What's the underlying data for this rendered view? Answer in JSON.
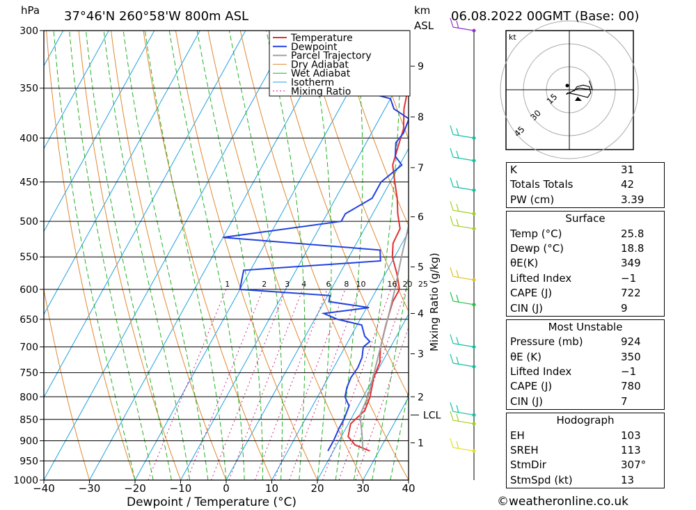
{
  "header": {
    "location": "37°46'N  260°58'W  800m  ASL",
    "datetime": "06.08.2022  00GMT  (Base: 00)",
    "unit_left": "hPa",
    "unit_km": "km",
    "unit_asl": "ASL",
    "kt": "kt"
  },
  "chart_data": {
    "type": "line",
    "title": "37°46'N  260°58'W  800m  ASL",
    "xlabel": "Dewpoint / Temperature (°C)",
    "ylabel": "hPa",
    "xlim": [
      -40,
      40
    ],
    "ylim": [
      1000,
      300
    ],
    "y_scale": "log",
    "x_ticks": [
      "−40",
      "−30",
      "−20",
      "−10",
      "0",
      "10",
      "20",
      "30",
      "40"
    ],
    "pressure_ticks": [
      300,
      350,
      400,
      450,
      500,
      550,
      600,
      650,
      700,
      750,
      800,
      850,
      900,
      950,
      1000
    ],
    "km_ticks": [
      {
        "label": "9",
        "p": 330
      },
      {
        "label": "8",
        "p": 378
      },
      {
        "label": "7",
        "p": 433
      },
      {
        "label": "6",
        "p": 494
      },
      {
        "label": "5",
        "p": 565
      },
      {
        "label": "4",
        "p": 640
      },
      {
        "label": "3",
        "p": 713
      },
      {
        "label": "2",
        "p": 800
      },
      {
        "label": "1",
        "p": 905
      }
    ],
    "lcl": {
      "label": "LCL",
      "p": 840
    },
    "mixing_ratio_axis_label": "Mixing Ratio (g/kg)",
    "mixing_ratio_labels": [
      "1",
      "2",
      "3",
      "4",
      "6",
      "8",
      "10",
      "16",
      "20",
      "25"
    ],
    "legend": [
      "Temperature",
      "Dewpoint",
      "Parcel Trajectory",
      "Dry Adiabat",
      "Wet Adiabat",
      "Isotherm",
      "Mixing Ratio"
    ],
    "legend_position": "top-right",
    "colors": {
      "temperature": "#e03030",
      "dewpoint": "#2040e0",
      "parcel": "#a0a0a0",
      "dry_adiabat": "#e08830",
      "wet_adiabat": "#20b020",
      "isotherm": "#20a0e0",
      "mixing": "#d02080"
    },
    "series": [
      {
        "name": "Temperature",
        "points": [
          [
            925,
            28
          ],
          [
            910,
            24
          ],
          [
            890,
            21.5
          ],
          [
            860,
            20.5
          ],
          [
            830,
            22
          ],
          [
            800,
            21.5
          ],
          [
            760,
            20
          ],
          [
            730,
            19.5
          ],
          [
            700,
            17.8
          ],
          [
            660,
            16.3
          ],
          [
            620,
            15
          ],
          [
            600,
            15
          ],
          [
            575,
            12.5
          ],
          [
            550,
            9.5
          ],
          [
            530,
            8
          ],
          [
            510,
            7.8
          ],
          [
            490,
            5.5
          ],
          [
            470,
            3.5
          ],
          [
            450,
            1
          ],
          [
            430,
            -1.5
          ],
          [
            410,
            -2.5
          ],
          [
            390,
            -3.5
          ],
          [
            370,
            -5.8
          ],
          [
            355,
            -7
          ],
          [
            310,
            -10
          ],
          [
            300,
            -10.5
          ]
        ]
      },
      {
        "name": "Dewpoint",
        "points": [
          [
            925,
            18.8
          ],
          [
            900,
            18.8
          ],
          [
            870,
            18.5
          ],
          [
            850,
            18.5
          ],
          [
            820,
            18
          ],
          [
            800,
            16
          ],
          [
            780,
            15.3
          ],
          [
            760,
            15
          ],
          [
            740,
            15.3
          ],
          [
            720,
            15
          ],
          [
            700,
            14
          ],
          [
            690,
            14.8
          ],
          [
            680,
            13
          ],
          [
            660,
            11
          ],
          [
            650,
            5
          ],
          [
            640,
            1.3
          ],
          [
            630,
            10.5
          ],
          [
            620,
            1
          ],
          [
            610,
            0.5
          ],
          [
            600,
            -20
          ],
          [
            570,
            -21.5
          ],
          [
            556,
            7.4
          ],
          [
            540,
            6
          ],
          [
            522,
            -30
          ],
          [
            500,
            -6
          ],
          [
            490,
            -6
          ],
          [
            470,
            -2
          ],
          [
            450,
            -2
          ],
          [
            430,
            0.5
          ],
          [
            420,
            -2
          ],
          [
            405,
            -3.5
          ],
          [
            395,
            -3
          ],
          [
            380,
            -3.5
          ],
          [
            370,
            -8
          ],
          [
            360,
            -10
          ],
          [
            355,
            -15
          ],
          [
            340,
            -12
          ],
          [
            310,
            -18
          ],
          [
            300,
            -22
          ]
        ]
      },
      {
        "name": "Parcel Trajectory",
        "points": [
          [
            925,
            26.5
          ],
          [
            880,
            24
          ],
          [
            840,
            21.5
          ],
          [
            800,
            21
          ],
          [
            750,
            19.5
          ],
          [
            700,
            17.8
          ],
          [
            650,
            16
          ],
          [
            600,
            14
          ],
          [
            550,
            11.5
          ],
          [
            500,
            9
          ],
          [
            450,
            6
          ],
          [
            400,
            2
          ],
          [
            350,
            -3
          ],
          [
            330,
            -5.5
          ]
        ]
      }
    ],
    "wind_barbs": [
      {
        "p": 300,
        "color": "#9030d0"
      },
      {
        "p": 400,
        "color": "#10c0a0"
      },
      {
        "p": 425,
        "color": "#10c0a0"
      },
      {
        "p": 460,
        "color": "#10c0a0"
      },
      {
        "p": 490,
        "color": "#a0d020"
      },
      {
        "p": 510,
        "color": "#a0d020"
      },
      {
        "p": 585,
        "color": "#e0c020"
      },
      {
        "p": 625,
        "color": "#20c040"
      },
      {
        "p": 700,
        "color": "#10c0a0"
      },
      {
        "p": 738,
        "color": "#10c0a0"
      },
      {
        "p": 840,
        "color": "#10c0a0"
      },
      {
        "p": 860,
        "color": "#a0d020"
      },
      {
        "p": 925,
        "color": "#e0e020"
      }
    ]
  },
  "hodograph": {
    "unit": "kt",
    "ring_labels": [
      "15",
      "30",
      "45"
    ],
    "trace_kt": [
      [
        3,
        1
      ],
      [
        5,
        -2
      ],
      [
        9,
        -3
      ],
      [
        13,
        -2
      ],
      [
        14,
        2
      ],
      [
        12,
        5
      ],
      [
        8,
        4
      ],
      [
        4,
        3
      ],
      [
        -1,
        2
      ],
      [
        -2,
        3
      ],
      [
        6,
        -1
      ],
      [
        15,
        0
      ],
      [
        13,
        -6
      ]
    ]
  },
  "indices": [
    {
      "label": "K",
      "value": "31"
    },
    {
      "label": "Totals Totals",
      "value": "42"
    },
    {
      "label": "PW (cm)",
      "value": "3.39"
    }
  ],
  "surface": {
    "title": "Surface",
    "rows": [
      {
        "label": "Temp (°C)",
        "value": "25.8"
      },
      {
        "label": "Dewp (°C)",
        "value": "18.8"
      },
      {
        "label": "θE(K)",
        "value": "349"
      },
      {
        "label": "Lifted Index",
        "value": "−1"
      },
      {
        "label": "CAPE (J)",
        "value": "722"
      },
      {
        "label": "CIN (J)",
        "value": "9"
      }
    ]
  },
  "most_unstable": {
    "title": "Most Unstable",
    "rows": [
      {
        "label": "Pressure (mb)",
        "value": "924"
      },
      {
        "label": "θE (K)",
        "value": "350"
      },
      {
        "label": "Lifted Index",
        "value": "−1"
      },
      {
        "label": "CAPE (J)",
        "value": "780"
      },
      {
        "label": "CIN (J)",
        "value": "7"
      }
    ]
  },
  "hodograph_table": {
    "title": "Hodograph",
    "rows": [
      {
        "label": "EH",
        "value": "103"
      },
      {
        "label": "SREH",
        "value": "113"
      },
      {
        "label": "StmDir",
        "value": "307°"
      },
      {
        "label": "StmSpd (kt)",
        "value": "13"
      }
    ]
  },
  "footer": {
    "credit": "©weatheronline.co.uk"
  }
}
